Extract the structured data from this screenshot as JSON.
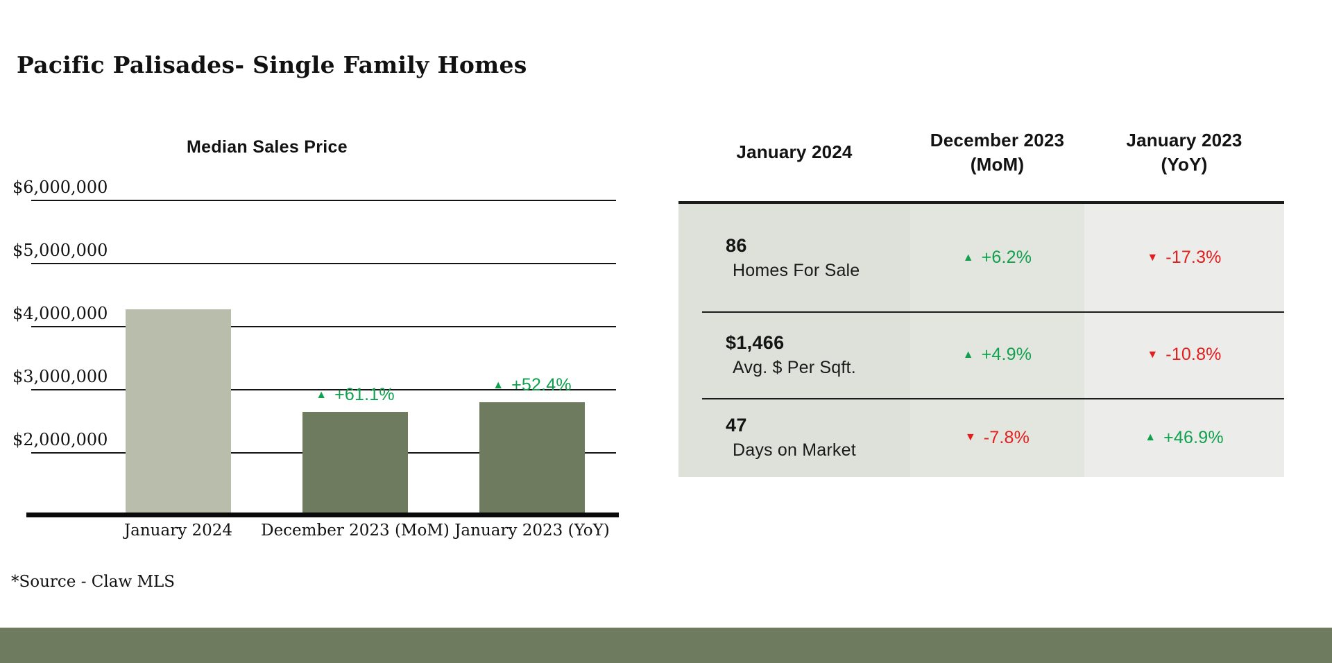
{
  "page": {
    "title": "Pacific Palisades- Single Family Homes",
    "source_note": "*Source - Claw MLS"
  },
  "icons": {
    "up": "▲",
    "down": "▼"
  },
  "colors": {
    "bar_current": "#b9bdac",
    "bar_comparison": "#6f7b5f",
    "positive_green": "#11a14e",
    "negative_red": "#e41d1d",
    "footer_band": "#6f7b5f",
    "table_col1_bg": "#dee1d9",
    "table_col2_bg": "#e3e5df",
    "table_col3_bg": "#ecedea"
  },
  "chart_data": [
    {
      "type": "bar",
      "title": "Median Sales Price",
      "categories": [
        "January 2024",
        "December 2023 (MoM)",
        "January 2023 (YoY)"
      ],
      "values": [
        4300000,
        2670000,
        2820000
      ],
      "annotations": [
        null,
        {
          "dir": "up",
          "text": "+61.1%"
        },
        {
          "dir": "up",
          "text": "+52.4%"
        }
      ],
      "yticks": [
        "$6,000,000",
        "$5,000,000",
        "$4,000,000",
        "$3,000,000",
        "$2,000,000"
      ],
      "ytick_values": [
        6000000,
        5000000,
        4000000,
        3000000,
        2000000
      ],
      "ylim": [
        1000000,
        6500000
      ],
      "xlabel": "",
      "ylabel": "",
      "grid": true,
      "legend_position": "none"
    },
    {
      "type": "table",
      "columns": [
        "January 2024",
        "December 2023 (MoM)",
        "January 2023 (YoY)"
      ],
      "headers": [
        {
          "line1": "January 2024",
          "line2": ""
        },
        {
          "line1": "December 2023",
          "line2": "(MoM)"
        },
        {
          "line1": "January 2023",
          "line2": "(YoY)"
        }
      ],
      "rows": [
        {
          "value": "86",
          "label": "Homes For Sale",
          "mom": {
            "dir": "up",
            "text": "+6.2%"
          },
          "yoy": {
            "dir": "down",
            "text": "-17.3%"
          }
        },
        {
          "value": "$1,466",
          "label": "Avg. $ Per Sqft.",
          "mom": {
            "dir": "up",
            "text": "+4.9%"
          },
          "yoy": {
            "dir": "down",
            "text": "-10.8%"
          }
        },
        {
          "value": "47",
          "label": "Days on Market",
          "mom": {
            "dir": "down",
            "text": "-7.8%"
          },
          "yoy": {
            "dir": "up",
            "text": "+46.9%"
          }
        }
      ]
    }
  ]
}
